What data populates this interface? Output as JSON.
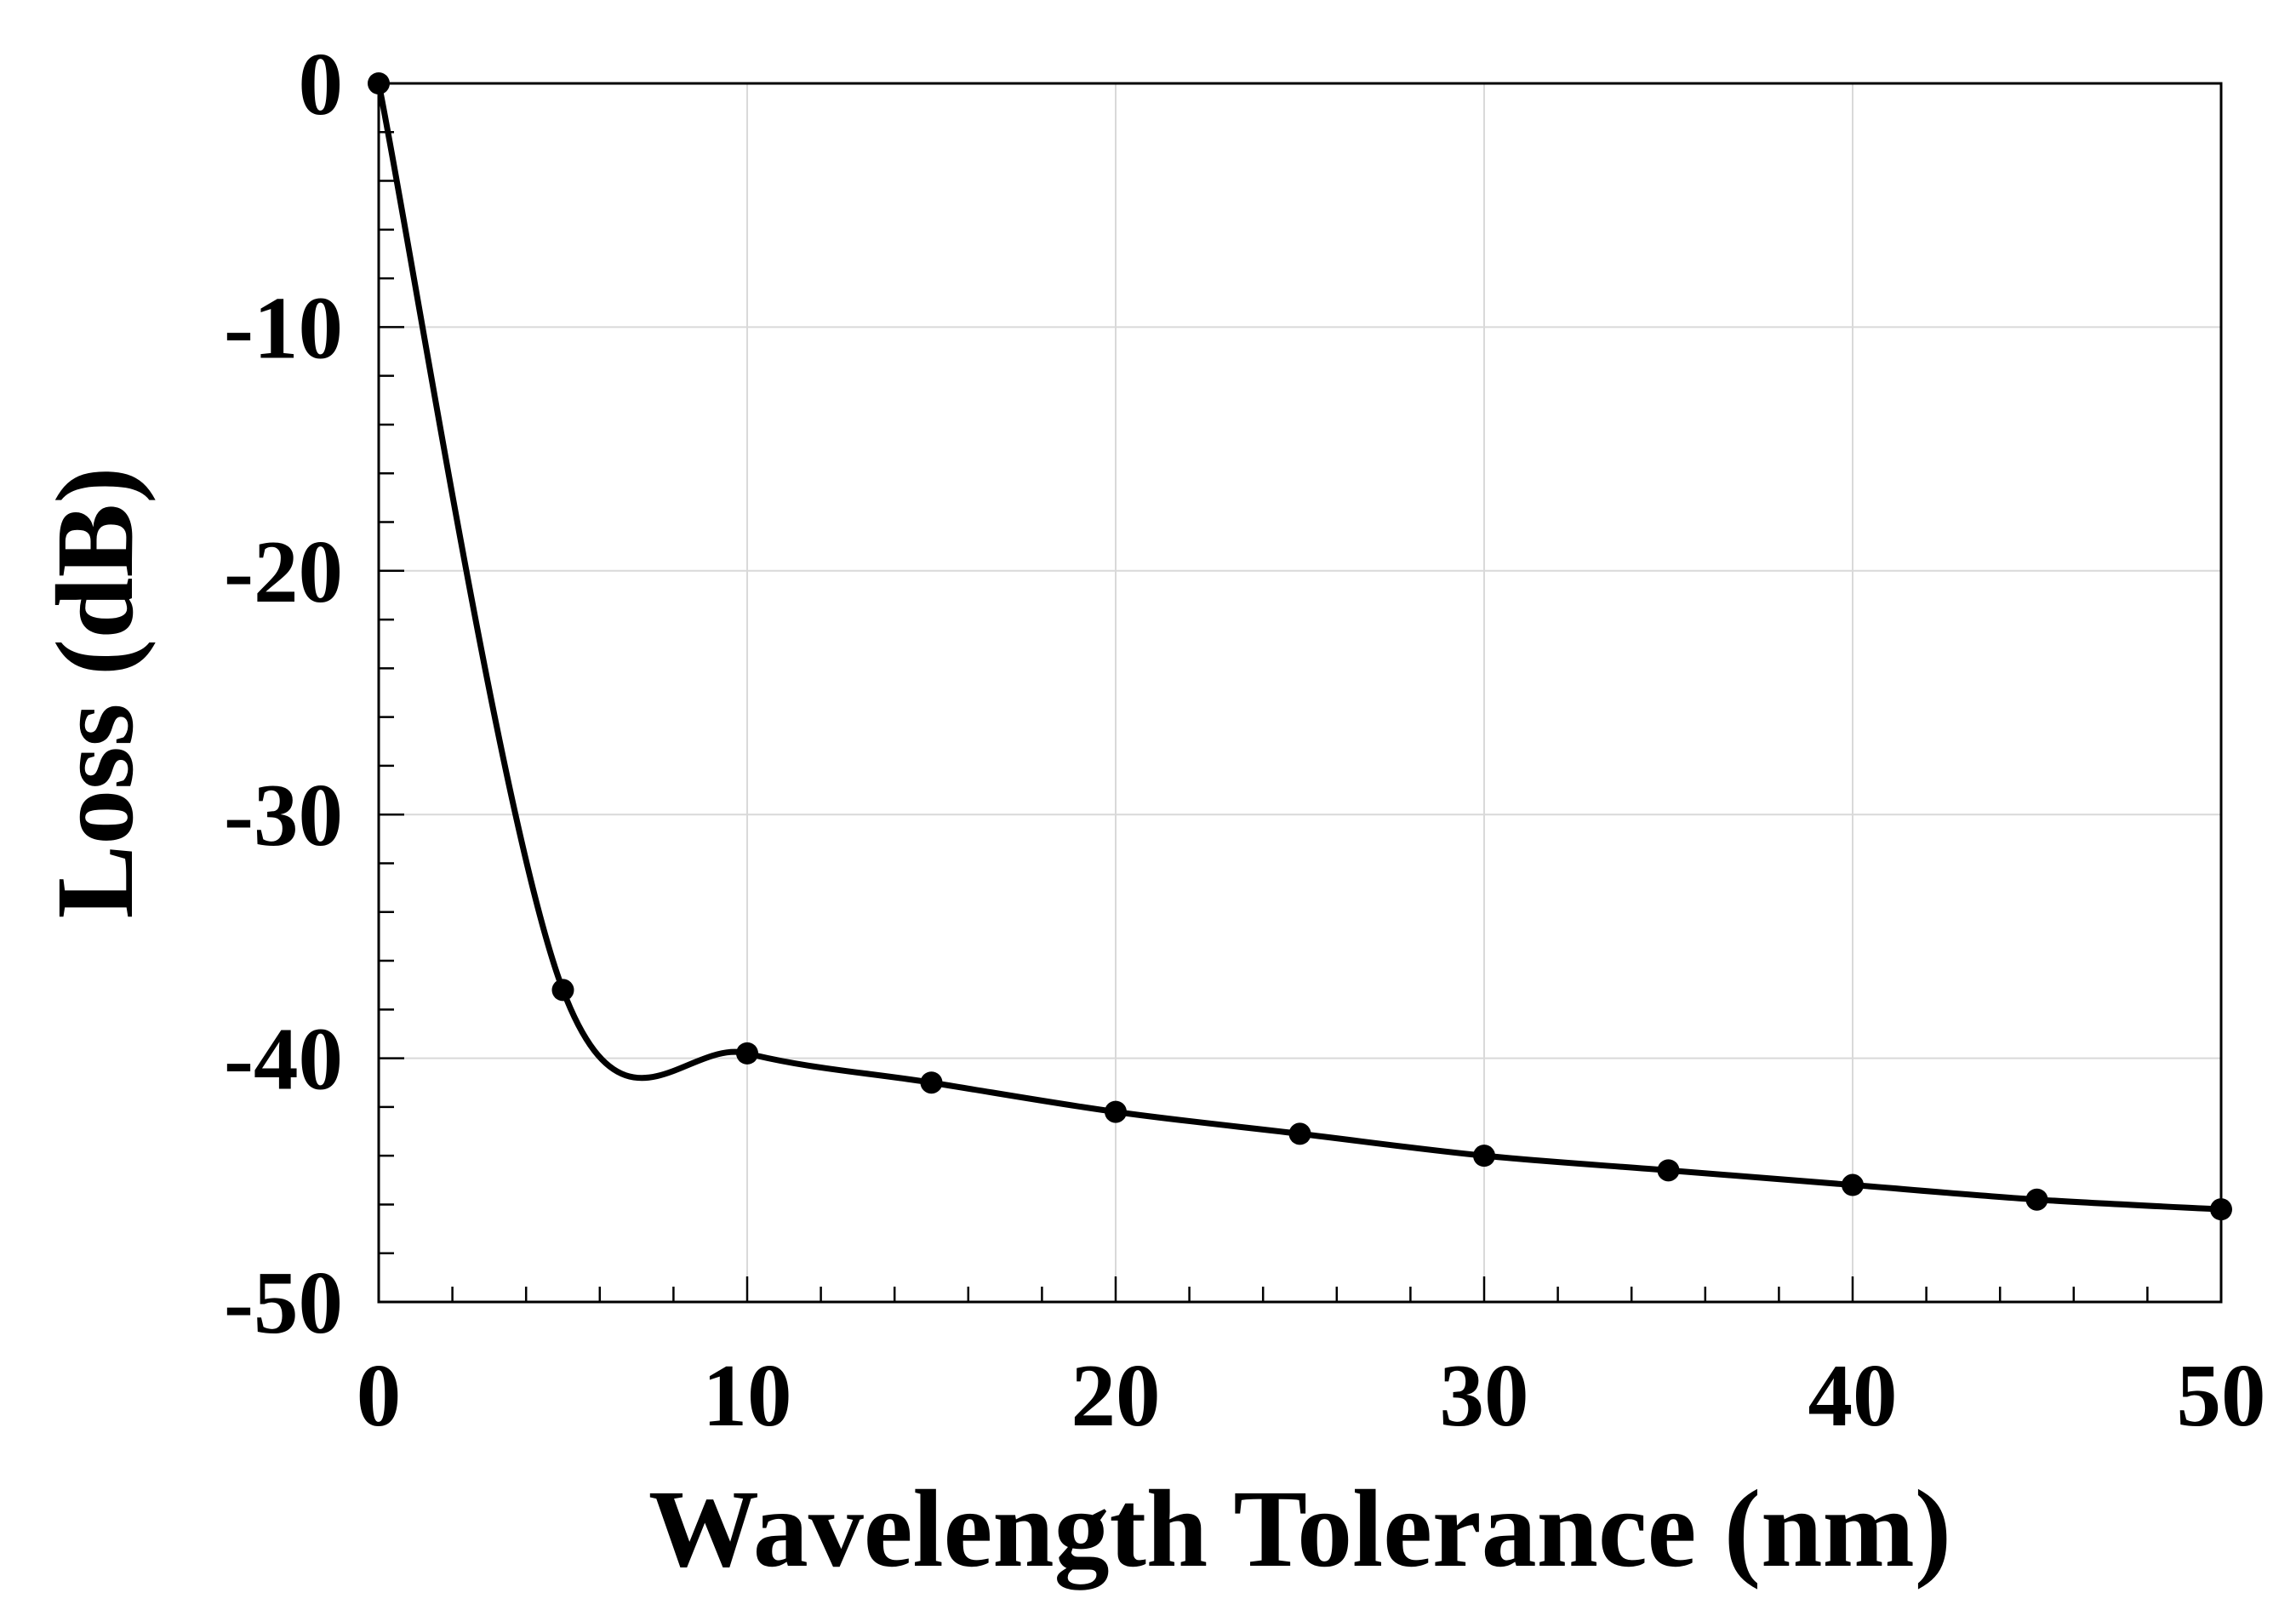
{
  "chart_data": {
    "type": "line",
    "title": "",
    "xlabel": "Wavelength Tolerance (nm)",
    "ylabel": "Loss (dB)",
    "xlim": [
      0,
      50
    ],
    "ylim": [
      -50,
      0
    ],
    "x_ticks": [
      "0",
      "10",
      "20",
      "30",
      "40",
      "50"
    ],
    "y_ticks": [
      "0",
      "-10",
      "-20",
      "-30",
      "-40",
      "-50"
    ],
    "grid": true,
    "legend": "none",
    "series": [
      {
        "color": "#000000",
        "marker": "circle",
        "smooth": true,
        "x": [
          0,
          5,
          10,
          15,
          20,
          25,
          30,
          35,
          40,
          45,
          50
        ],
        "y": [
          0,
          -37.2,
          -39.8,
          -41.0,
          -42.2,
          -43.1,
          -44.0,
          -44.6,
          -45.2,
          -45.8,
          -46.2
        ]
      }
    ]
  }
}
